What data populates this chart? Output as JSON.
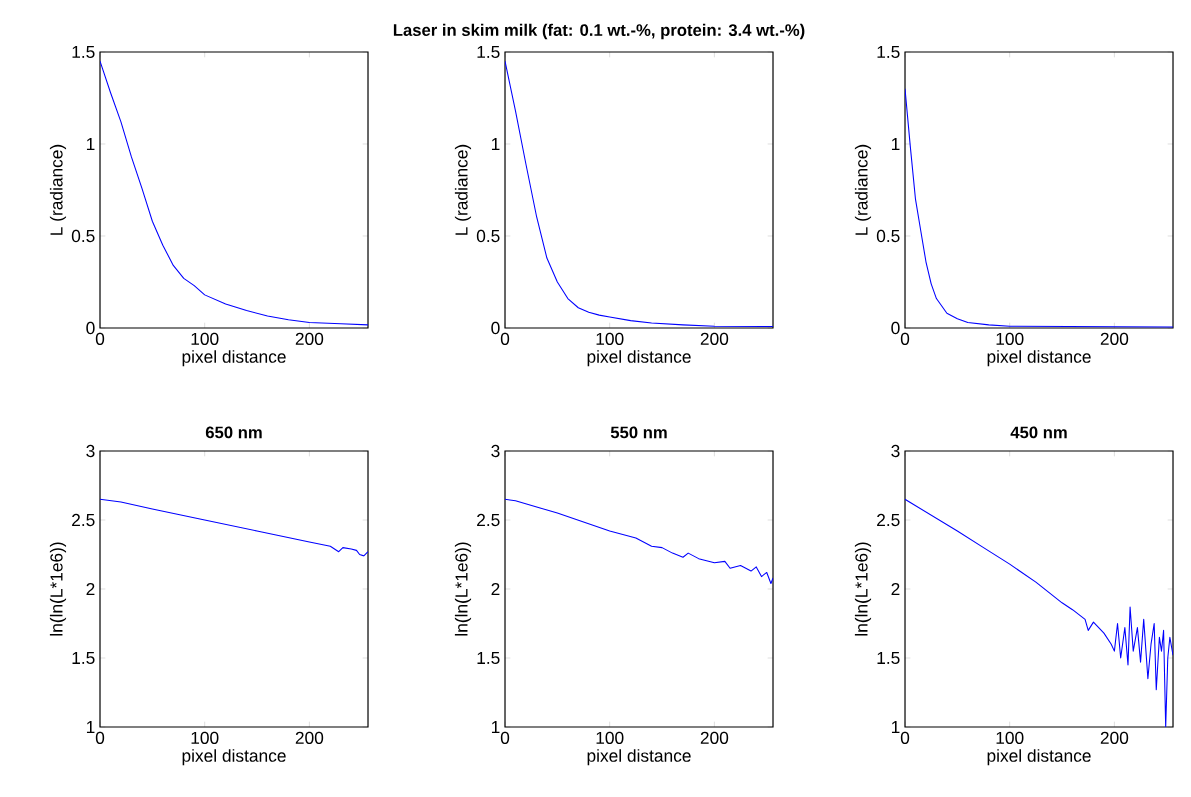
{
  "chart_data": [
    {
      "type": "line",
      "xlabel": "pixel distance",
      "ylabel": "L (radiance)",
      "xlim": [
        0,
        256
      ],
      "ylim": [
        0,
        1.5
      ],
      "xticks": [
        0,
        100,
        200
      ],
      "yticks": [
        0,
        0.5,
        1,
        1.5
      ],
      "series": [
        {
          "color": "#0000ff",
          "x": [
            0,
            10,
            20,
            30,
            40,
            50,
            60,
            70,
            80,
            90,
            100,
            120,
            140,
            160,
            180,
            200,
            230,
            256
          ],
          "values": [
            1.45,
            1.28,
            1.12,
            0.93,
            0.76,
            0.58,
            0.45,
            0.34,
            0.27,
            0.23,
            0.18,
            0.13,
            0.095,
            0.065,
            0.045,
            0.03,
            0.023,
            0.017
          ]
        }
      ]
    },
    {
      "type": "line",
      "title": "Laser in skim milk (fat: 0.1 wt.-%, protein: 3.4 wt.-%)",
      "xlabel": "pixel distance",
      "ylabel": "L (radiance)",
      "xlim": [
        0,
        256
      ],
      "ylim": [
        0,
        1.5
      ],
      "xticks": [
        0,
        100,
        200
      ],
      "yticks": [
        0,
        0.5,
        1,
        1.5
      ],
      "series": [
        {
          "color": "#0000ff",
          "x": [
            0,
            10,
            20,
            30,
            40,
            50,
            60,
            70,
            80,
            90,
            100,
            120,
            140,
            170,
            200,
            256
          ],
          "values": [
            1.45,
            1.18,
            0.89,
            0.61,
            0.38,
            0.25,
            0.16,
            0.11,
            0.085,
            0.07,
            0.06,
            0.04,
            0.027,
            0.017,
            0.01,
            0.008
          ]
        }
      ]
    },
    {
      "type": "line",
      "xlabel": "pixel distance",
      "ylabel": "L (radiance)",
      "xlim": [
        0,
        256
      ],
      "ylim": [
        0,
        1.5
      ],
      "xticks": [
        0,
        100,
        200
      ],
      "yticks": [
        0,
        0.5,
        1,
        1.5
      ],
      "series": [
        {
          "color": "#0000ff",
          "x": [
            0,
            5,
            10,
            15,
            20,
            25,
            30,
            40,
            50,
            60,
            80,
            100,
            256
          ],
          "values": [
            1.3,
            0.99,
            0.7,
            0.53,
            0.36,
            0.24,
            0.16,
            0.08,
            0.05,
            0.03,
            0.017,
            0.01,
            0.005
          ]
        }
      ]
    },
    {
      "type": "line",
      "title": "650 nm",
      "xlabel": "pixel distance",
      "ylabel": "ln(ln(L*1e6))",
      "xlim": [
        0,
        256
      ],
      "ylim": [
        1,
        3
      ],
      "xticks": [
        0,
        100,
        200
      ],
      "yticks": [
        1,
        1.5,
        2,
        2.5,
        3
      ],
      "series": [
        {
          "color": "#0000ff",
          "x": [
            0,
            20,
            50,
            100,
            150,
            200,
            220,
            228,
            232,
            240,
            245,
            248,
            252,
            256
          ],
          "values": [
            2.65,
            2.63,
            2.58,
            2.5,
            2.42,
            2.34,
            2.31,
            2.27,
            2.3,
            2.29,
            2.28,
            2.25,
            2.24,
            2.27
          ]
        }
      ]
    },
    {
      "type": "line",
      "title": "550 nm",
      "xlabel": "pixel distance",
      "ylabel": "ln(ln(L*1e6))",
      "xlim": [
        0,
        256
      ],
      "ylim": [
        1,
        3
      ],
      "xticks": [
        0,
        100,
        200
      ],
      "yticks": [
        1,
        1.5,
        2,
        2.5,
        3
      ],
      "series": [
        {
          "color": "#0000ff",
          "x": [
            0,
            10,
            50,
            100,
            125,
            140,
            150,
            160,
            170,
            175,
            185,
            200,
            210,
            215,
            225,
            235,
            240,
            245,
            250,
            254,
            256
          ],
          "values": [
            2.65,
            2.64,
            2.55,
            2.42,
            2.37,
            2.31,
            2.3,
            2.26,
            2.23,
            2.26,
            2.22,
            2.19,
            2.2,
            2.15,
            2.17,
            2.13,
            2.16,
            2.09,
            2.12,
            2.04,
            2.08
          ]
        }
      ]
    },
    {
      "type": "line",
      "title": "450 nm",
      "xlabel": "pixel distance",
      "ylabel": "ln(ln(L*1e6))",
      "xlim": [
        0,
        256
      ],
      "ylim": [
        1,
        3
      ],
      "xticks": [
        0,
        100,
        200
      ],
      "yticks": [
        1,
        1.5,
        2,
        2.5,
        3
      ],
      "series": [
        {
          "color": "#0000ff",
          "x": [
            0,
            50,
            75,
            100,
            125,
            150,
            160,
            172,
            175,
            180,
            190,
            197,
            200,
            203,
            206,
            210,
            213,
            215,
            218,
            222,
            225,
            228,
            232,
            235,
            238,
            240,
            243,
            245,
            247,
            249,
            251,
            253,
            256
          ],
          "values": [
            2.65,
            2.42,
            2.3,
            2.18,
            2.05,
            1.9,
            1.85,
            1.78,
            1.7,
            1.76,
            1.68,
            1.6,
            1.55,
            1.75,
            1.5,
            1.72,
            1.45,
            1.87,
            1.55,
            1.72,
            1.47,
            1.78,
            1.35,
            1.6,
            1.75,
            1.27,
            1.65,
            1.55,
            1.7,
            1.0,
            1.5,
            1.65,
            1.52
          ]
        }
      ]
    }
  ]
}
